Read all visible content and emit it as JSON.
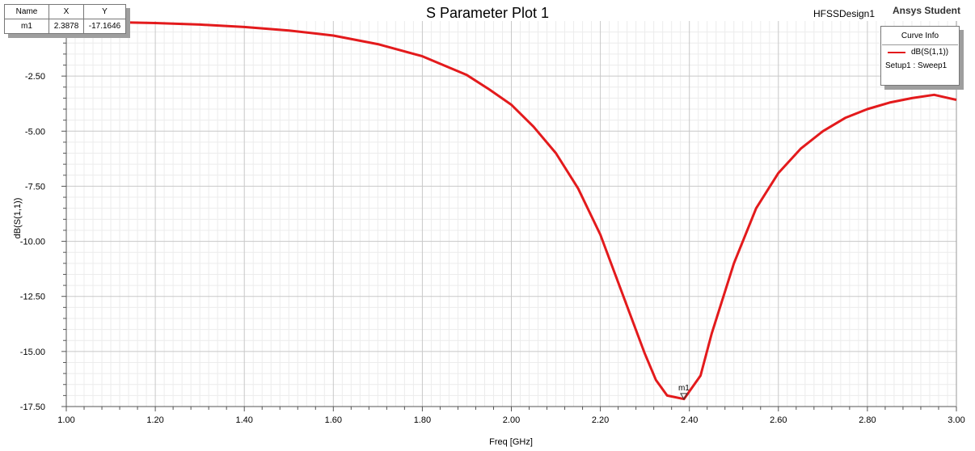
{
  "header": {
    "title": "S Parameter Plot 1",
    "design": "HFSSDesign1",
    "brand": "Ansys Student"
  },
  "marker_table": {
    "headers": [
      "Name",
      "X",
      "Y"
    ],
    "row": [
      "m1",
      "2.3878",
      "-17.1646"
    ]
  },
  "legend": {
    "title": "Curve Info",
    "series_name": "dB(S(1,1))",
    "setup": "Setup1 : Sweep1"
  },
  "colors": {
    "trace": "#e31a1c",
    "major_grid": "#c8c8c8",
    "minor_grid": "#ececec",
    "shadow": "#9e9e9e"
  },
  "chart_data": {
    "type": "line",
    "title": "S Parameter Plot 1",
    "xlabel": "Freq [GHz]",
    "ylabel": "dB(S(1,1))",
    "xlim": [
      1.0,
      3.0
    ],
    "ylim": [
      -17.5,
      0.0
    ],
    "x_ticks": [
      "1.00",
      "1.20",
      "1.40",
      "1.60",
      "1.80",
      "2.00",
      "2.20",
      "2.40",
      "2.60",
      "2.80",
      "3.00"
    ],
    "y_ticks": [
      "-2.50",
      "-5.00",
      "-7.50",
      "-10.00",
      "-12.50",
      "-15.00",
      "-17.50"
    ],
    "grid": true,
    "legend_position": "top-right",
    "series": [
      {
        "name": "dB(S(1,1))",
        "x": [
          1.0,
          1.1,
          1.2,
          1.3,
          1.4,
          1.5,
          1.6,
          1.7,
          1.8,
          1.9,
          1.95,
          2.0,
          2.05,
          2.1,
          2.15,
          2.2,
          2.25,
          2.3,
          2.325,
          2.35,
          2.3878,
          2.425,
          2.45,
          2.5,
          2.55,
          2.6,
          2.65,
          2.7,
          2.75,
          2.8,
          2.85,
          2.9,
          2.95,
          3.0
        ],
        "y": [
          -0.03,
          -0.05,
          -0.09,
          -0.16,
          -0.27,
          -0.43,
          -0.66,
          -1.05,
          -1.6,
          -2.45,
          -3.1,
          -3.8,
          -4.8,
          -6.0,
          -7.6,
          -9.7,
          -12.4,
          -15.1,
          -16.3,
          -17.0,
          -17.16,
          -16.1,
          -14.2,
          -11.0,
          -8.5,
          -6.9,
          -5.8,
          -5.0,
          -4.4,
          -4.0,
          -3.7,
          -3.5,
          -3.35,
          -3.58
        ]
      }
    ],
    "markers": [
      {
        "name": "m1",
        "x": 2.3878,
        "y": -17.1646
      }
    ]
  }
}
